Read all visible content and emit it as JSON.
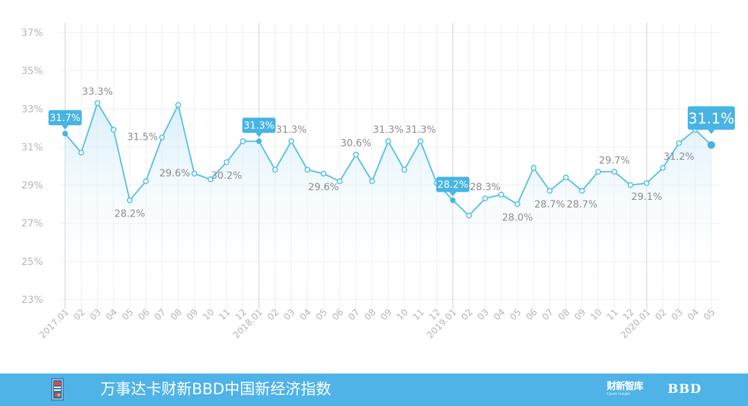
{
  "chart_data": {
    "type": "line",
    "x": [
      "2017.01",
      "02",
      "03",
      "04",
      "05",
      "06",
      "07",
      "08",
      "09",
      "10",
      "11",
      "12",
      "2018.01",
      "02",
      "03",
      "04",
      "05",
      "06",
      "07",
      "08",
      "09",
      "10",
      "11",
      "12",
      "2019.01",
      "02",
      "03",
      "04",
      "05",
      "06",
      "07",
      "08",
      "09",
      "10",
      "11",
      "12",
      "2020.01",
      "02",
      "03",
      "04",
      "05"
    ],
    "series": [
      {
        "values": [
          31.7,
          30.7,
          33.3,
          31.9,
          28.2,
          29.2,
          31.5,
          33.2,
          29.6,
          29.3,
          30.2,
          31.3,
          31.3,
          29.8,
          31.3,
          29.8,
          29.6,
          29.2,
          30.6,
          29.2,
          31.3,
          29.8,
          31.3,
          29.1,
          28.2,
          27.4,
          28.3,
          28.5,
          28.0,
          29.9,
          28.7,
          29.4,
          28.7,
          29.7,
          29.7,
          29.0,
          29.1,
          29.9,
          31.2,
          31.9,
          31.1
        ]
      }
    ],
    "ylim": [
      23,
      37
    ],
    "y_ticks": [
      "37%",
      "35%",
      "33%",
      "31%",
      "29%",
      "27%",
      "25%",
      "23%"
    ],
    "y_tick_values": [
      37,
      35,
      33,
      31,
      29,
      27,
      25,
      23
    ],
    "year_markers": [
      0,
      12,
      24,
      36
    ],
    "data_labels": [
      {
        "index": 2,
        "text": "33.3%",
        "pos": "above"
      },
      {
        "index": 4,
        "text": "28.2%",
        "pos": "below"
      },
      {
        "index": 6,
        "text": "31.5%",
        "pos": "left"
      },
      {
        "index": 8,
        "text": "29.6%",
        "pos": "left"
      },
      {
        "index": 10,
        "text": "30.2%",
        "pos": "below"
      },
      {
        "index": 14,
        "text": "31.3%",
        "pos": "above"
      },
      {
        "index": 16,
        "text": "29.6%",
        "pos": "below"
      },
      {
        "index": 18,
        "text": "30.6%",
        "pos": "above"
      },
      {
        "index": 20,
        "text": "31.3%",
        "pos": "above"
      },
      {
        "index": 22,
        "text": "31.3%",
        "pos": "above"
      },
      {
        "index": 26,
        "text": "28.3%",
        "pos": "above"
      },
      {
        "index": 28,
        "text": "28.0%",
        "pos": "below"
      },
      {
        "index": 30,
        "text": "28.7%",
        "pos": "below"
      },
      {
        "index": 32,
        "text": "28.7%",
        "pos": "below"
      },
      {
        "index": 34,
        "text": "29.7%",
        "pos": "above"
      },
      {
        "index": 36,
        "text": "29.1%",
        "pos": "below"
      },
      {
        "index": 38,
        "text": "31.2%",
        "pos": "below"
      }
    ],
    "callouts": [
      {
        "index": 0,
        "text": "31.7%"
      },
      {
        "index": 12,
        "text": "31.3%"
      },
      {
        "index": 24,
        "text": "28.2%"
      },
      {
        "index": 40,
        "text": "31.1%",
        "large": true
      }
    ],
    "grid": true
  },
  "colors": {
    "line": "#5bbfe6",
    "area_top": "#cdebf9",
    "callout_bg": "#47b4e3",
    "label": "#8a8a8a",
    "tick": "#b4b4b4",
    "grid": "#eeeeee",
    "year_line": "#dcdcdc",
    "footer_bg": "#4fb3e8"
  },
  "footer": {
    "title": "万事达卡财新BBD中国新经济指数",
    "logo_mid": "财新智库",
    "logo_mid_sub": "Caixin Insight",
    "logo_right": "BBD"
  }
}
